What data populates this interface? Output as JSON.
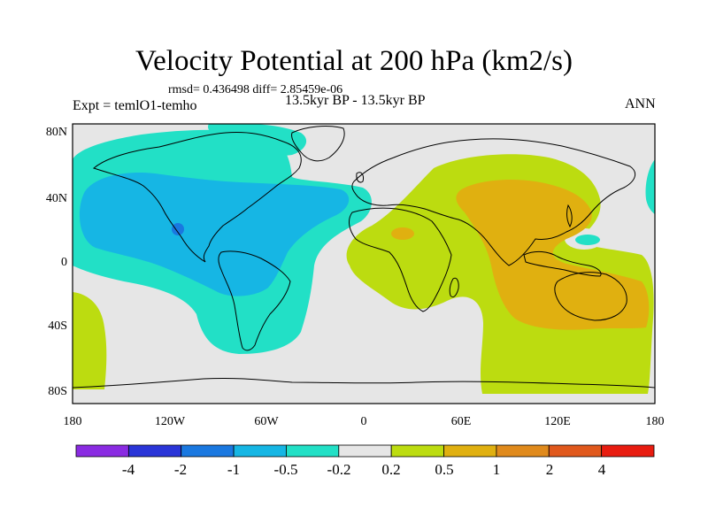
{
  "header": {
    "title": "Velocity Potential at 200 hPa (km2/s)",
    "stats": "rmsd= 0.436498 diff= 2.85459e-06",
    "experiment": "Expt = temlO1-temho",
    "period": "13.5kyr BP - 13.5kyr BP",
    "season": "ANN"
  },
  "axes": {
    "lat_ticks": [
      "80N",
      "40N",
      "0",
      "40S",
      "80S"
    ],
    "lon_ticks": [
      "180",
      "120W",
      "60W",
      "0",
      "60E",
      "120E",
      "180"
    ]
  },
  "colorbar": {
    "colors": [
      "#8a2be2",
      "#2a35d8",
      "#1a78e0",
      "#16b6e4",
      "#22e0c6",
      "#e6e6e6",
      "#bcdc10",
      "#e0b010",
      "#e08a1c",
      "#e0581c",
      "#e81c10"
    ],
    "labels": [
      "-4",
      "-2",
      "-1",
      "-0.5",
      "-0.2",
      "0.2",
      "0.5",
      "1",
      "2",
      "4"
    ]
  },
  "colors": {
    "neutral": "#e6e6e6",
    "cyan": "#22e0c6",
    "light_blue": "#16b6e4",
    "mid_blue": "#1a78e0",
    "yellow_green": "#bcdc10",
    "orange": "#e0b010"
  }
}
